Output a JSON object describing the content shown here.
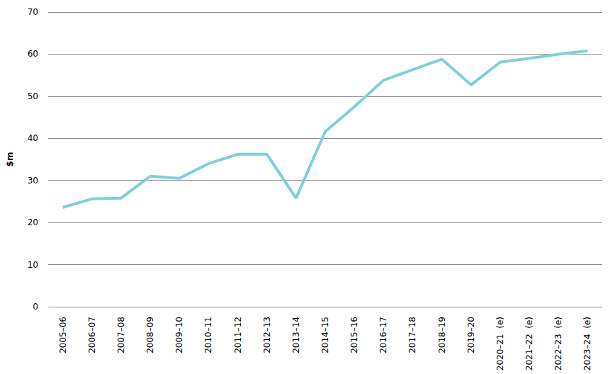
{
  "chart_data": {
    "type": "line",
    "y_label": "$m",
    "categories": [
      "2005–06",
      "2006–07",
      "2007–08",
      "2008–09",
      "2009–10",
      "2010–11",
      "2011–12",
      "2012–13",
      "2013–14",
      "2014–15",
      "2015–16",
      "2016–17",
      "2017–18",
      "2018–19",
      "2019–20",
      "2020–21  (e)",
      "2021–22  (e)",
      "2022–23  (e)",
      "2023–24  (e)"
    ],
    "values": [
      23.6,
      25.6,
      25.8,
      31.0,
      30.5,
      34.0,
      36.2,
      36.2,
      25.8,
      41.6,
      47.5,
      53.8,
      56.3,
      58.8,
      52.7,
      58.1,
      59.0,
      60.0,
      60.8
    ],
    "color": "#7fcfdc",
    "ylim": [
      0,
      70
    ],
    "yticks": [
      0,
      10,
      20,
      30,
      40,
      50,
      60,
      70
    ],
    "grid": true
  }
}
